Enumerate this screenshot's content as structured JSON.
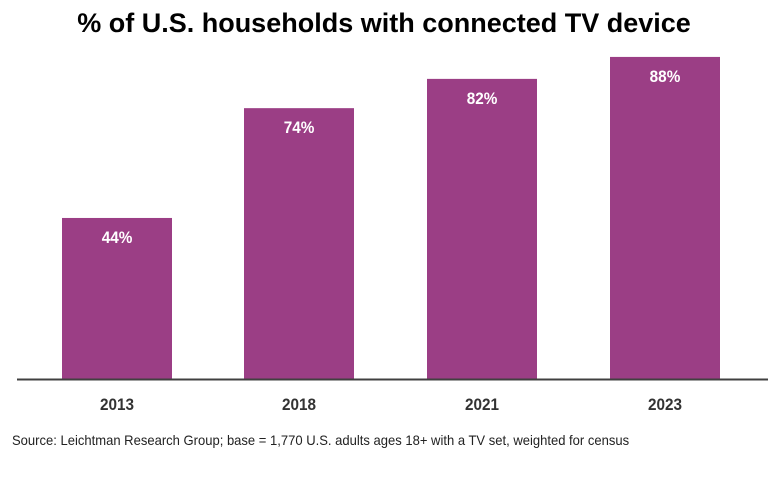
{
  "chart_data": {
    "type": "bar",
    "title": "% of U.S. households with connected TV device",
    "categories": [
      "2013",
      "2018",
      "2021",
      "2023"
    ],
    "values": [
      44,
      74,
      82,
      88
    ],
    "data_labels": [
      "44%",
      "74%",
      "82%",
      "88%"
    ],
    "xlabel": "",
    "ylabel": "",
    "ylim": [
      0,
      100
    ],
    "grid": false,
    "bar_color": "#9B3E85",
    "label_color": "#FFFFFF",
    "axis_color": "#404040"
  },
  "source": "Source: Leichtman Research Group; base = 1,770 U.S. adults ages 18+ with a TV set, weighted for census"
}
